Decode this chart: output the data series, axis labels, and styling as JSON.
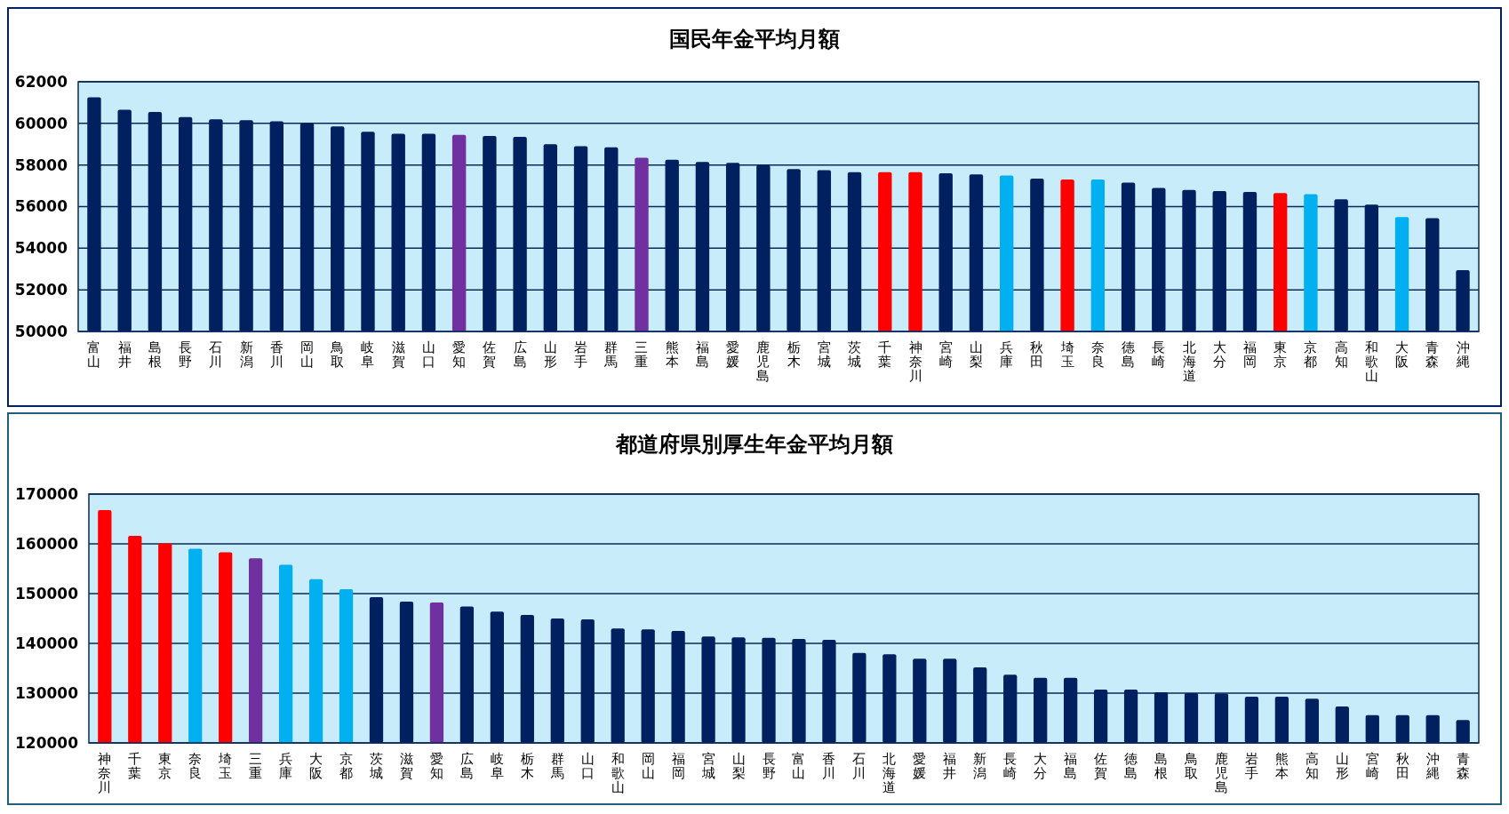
{
  "chart_data": [
    {
      "type": "bar",
      "title": "国民年金平均月額",
      "categories": [
        "富山",
        "福井",
        "島根",
        "長野",
        "石川",
        "新潟",
        "香川",
        "岡山",
        "鳥取",
        "岐阜",
        "滋賀",
        "山口",
        "愛知",
        "佐賀",
        "広島",
        "山形",
        "岩手",
        "群馬",
        "三重",
        "熊本",
        "福島",
        "愛媛",
        "鹿児島",
        "栃木",
        "宮城",
        "茨城",
        "千葉",
        "神奈川",
        "宮崎",
        "山梨",
        "兵庫",
        "秋田",
        "埼玉",
        "奈良",
        "徳島",
        "長崎",
        "北海道",
        "大分",
        "福岡",
        "東京",
        "京都",
        "高知",
        "和歌山",
        "大阪",
        "青森",
        "沖縄"
      ],
      "values": [
        61250,
        60650,
        60550,
        60300,
        60200,
        60150,
        60100,
        60000,
        59850,
        59600,
        59500,
        59500,
        59450,
        59400,
        59350,
        59000,
        58900,
        58850,
        58350,
        58250,
        58150,
        58100,
        58000,
        57800,
        57750,
        57650,
        57650,
        57650,
        57600,
        57550,
        57500,
        57350,
        57300,
        57300,
        57150,
        56900,
        56800,
        56750,
        56700,
        56650,
        56600,
        56350,
        56100,
        55500,
        55450,
        52950
      ],
      "colors": [
        "#002060",
        "#002060",
        "#002060",
        "#002060",
        "#002060",
        "#002060",
        "#002060",
        "#002060",
        "#002060",
        "#002060",
        "#002060",
        "#002060",
        "#7030a0",
        "#002060",
        "#002060",
        "#002060",
        "#002060",
        "#002060",
        "#7030a0",
        "#002060",
        "#002060",
        "#002060",
        "#002060",
        "#002060",
        "#002060",
        "#002060",
        "#ff0000",
        "#ff0000",
        "#002060",
        "#002060",
        "#00b0f0",
        "#002060",
        "#ff0000",
        "#00b0f0",
        "#002060",
        "#002060",
        "#002060",
        "#002060",
        "#002060",
        "#ff0000",
        "#00b0f0",
        "#002060",
        "#002060",
        "#00b0f0",
        "#002060",
        "#002060"
      ],
      "ylim": [
        50000,
        62000
      ],
      "yticks": [
        50000,
        52000,
        54000,
        56000,
        58000,
        60000,
        62000
      ],
      "grid": "y"
    },
    {
      "type": "bar",
      "title": "都道府県別厚生年金平均月額",
      "categories": [
        "神奈川",
        "千葉",
        "東京",
        "奈良",
        "埼玉",
        "三重",
        "兵庫",
        "大阪",
        "京都",
        "茨城",
        "滋賀",
        "愛知",
        "広島",
        "岐阜",
        "栃木",
        "群馬",
        "山口",
        "和歌山",
        "岡山",
        "福岡",
        "宮城",
        "山梨",
        "長野",
        "富山",
        "香川",
        "石川",
        "北海道",
        "愛媛",
        "福井",
        "新潟",
        "長崎",
        "大分",
        "福島",
        "佐賀",
        "徳島",
        "島根",
        "鳥取",
        "鹿児島",
        "岩手",
        "熊本",
        "高知",
        "山形",
        "宮崎",
        "秋田",
        "沖縄",
        "青森"
      ],
      "values": [
        166800,
        161600,
        160100,
        159000,
        158300,
        157100,
        155800,
        152900,
        150900,
        149300,
        148400,
        148200,
        147400,
        146400,
        145700,
        145000,
        144800,
        143000,
        142800,
        142500,
        141400,
        141200,
        141100,
        140900,
        140700,
        138100,
        137800,
        136900,
        136900,
        135200,
        133700,
        133100,
        133100,
        130700,
        130700,
        130200,
        130000,
        129900,
        129300,
        129300,
        128900,
        127300,
        125600,
        125600,
        125600,
        124600
      ],
      "colors": [
        "#ff0000",
        "#ff0000",
        "#ff0000",
        "#00b0f0",
        "#ff0000",
        "#7030a0",
        "#00b0f0",
        "#00b0f0",
        "#00b0f0",
        "#002060",
        "#002060",
        "#7030a0",
        "#002060",
        "#002060",
        "#002060",
        "#002060",
        "#002060",
        "#002060",
        "#002060",
        "#002060",
        "#002060",
        "#002060",
        "#002060",
        "#002060",
        "#002060",
        "#002060",
        "#002060",
        "#002060",
        "#002060",
        "#002060",
        "#002060",
        "#002060",
        "#002060",
        "#002060",
        "#002060",
        "#002060",
        "#002060",
        "#002060",
        "#002060",
        "#002060",
        "#002060",
        "#002060",
        "#002060",
        "#002060",
        "#002060",
        "#002060"
      ],
      "ylim": [
        120000,
        170000
      ],
      "yticks": [
        120000,
        130000,
        140000,
        150000,
        160000,
        170000
      ],
      "grid": "y"
    }
  ]
}
